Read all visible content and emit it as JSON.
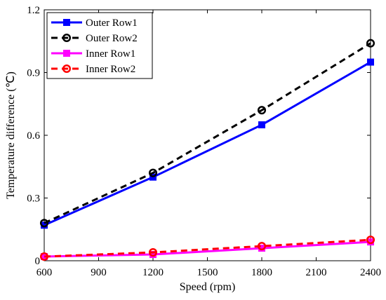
{
  "chart_data": {
    "type": "line",
    "title": "",
    "xlabel": "Speed (rpm)",
    "ylabel": "Temperature difference (℃)",
    "x": [
      600,
      1200,
      1800,
      2400
    ],
    "xlim": [
      600,
      2400
    ],
    "ylim": [
      0,
      1.2
    ],
    "xticks": [
      "600",
      "900",
      "1200",
      "1500",
      "1800",
      "2100",
      "2400"
    ],
    "yticks": [
      "0",
      "0.3",
      "0.6",
      "0.9",
      "1.2"
    ],
    "grid": false,
    "legend_position": "top-left",
    "series": [
      {
        "name": "Outer Row1",
        "values": [
          0.17,
          0.4,
          0.65,
          0.95
        ],
        "color": "#0000ff",
        "line_style": "solid",
        "marker": "square-filled"
      },
      {
        "name": "Outer Row2",
        "values": [
          0.18,
          0.42,
          0.72,
          1.04
        ],
        "color": "#000000",
        "line_style": "dashed",
        "marker": "circle-open"
      },
      {
        "name": "Inner Row1",
        "values": [
          0.02,
          0.03,
          0.06,
          0.09
        ],
        "color": "#ff00ff",
        "line_style": "solid",
        "marker": "square-filled"
      },
      {
        "name": "Inner Row2",
        "values": [
          0.02,
          0.04,
          0.07,
          0.1
        ],
        "color": "#ff0000",
        "line_style": "dashed",
        "marker": "circle-open"
      }
    ]
  }
}
